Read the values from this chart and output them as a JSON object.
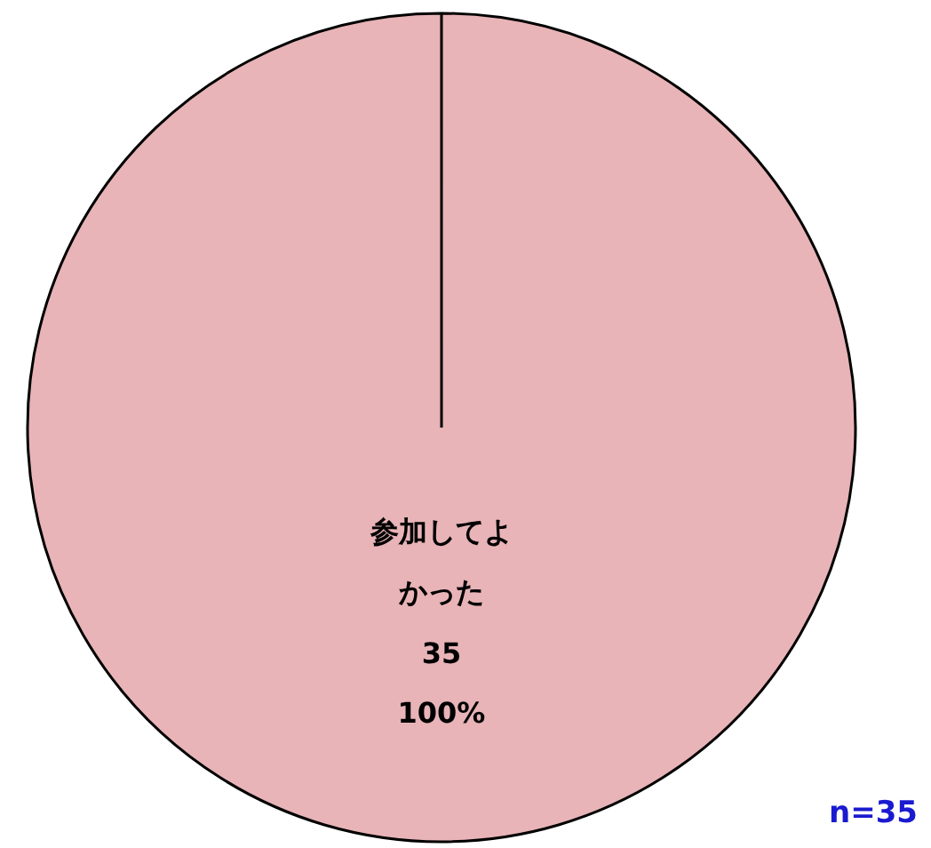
{
  "chart_data": {
    "type": "pie",
    "categories": [
      "参加してよかった"
    ],
    "values": [
      35
    ],
    "colors": [
      "#e8b4b7"
    ],
    "data_labels": true,
    "annotations": [
      "100%",
      "n=35"
    ]
  }
}
